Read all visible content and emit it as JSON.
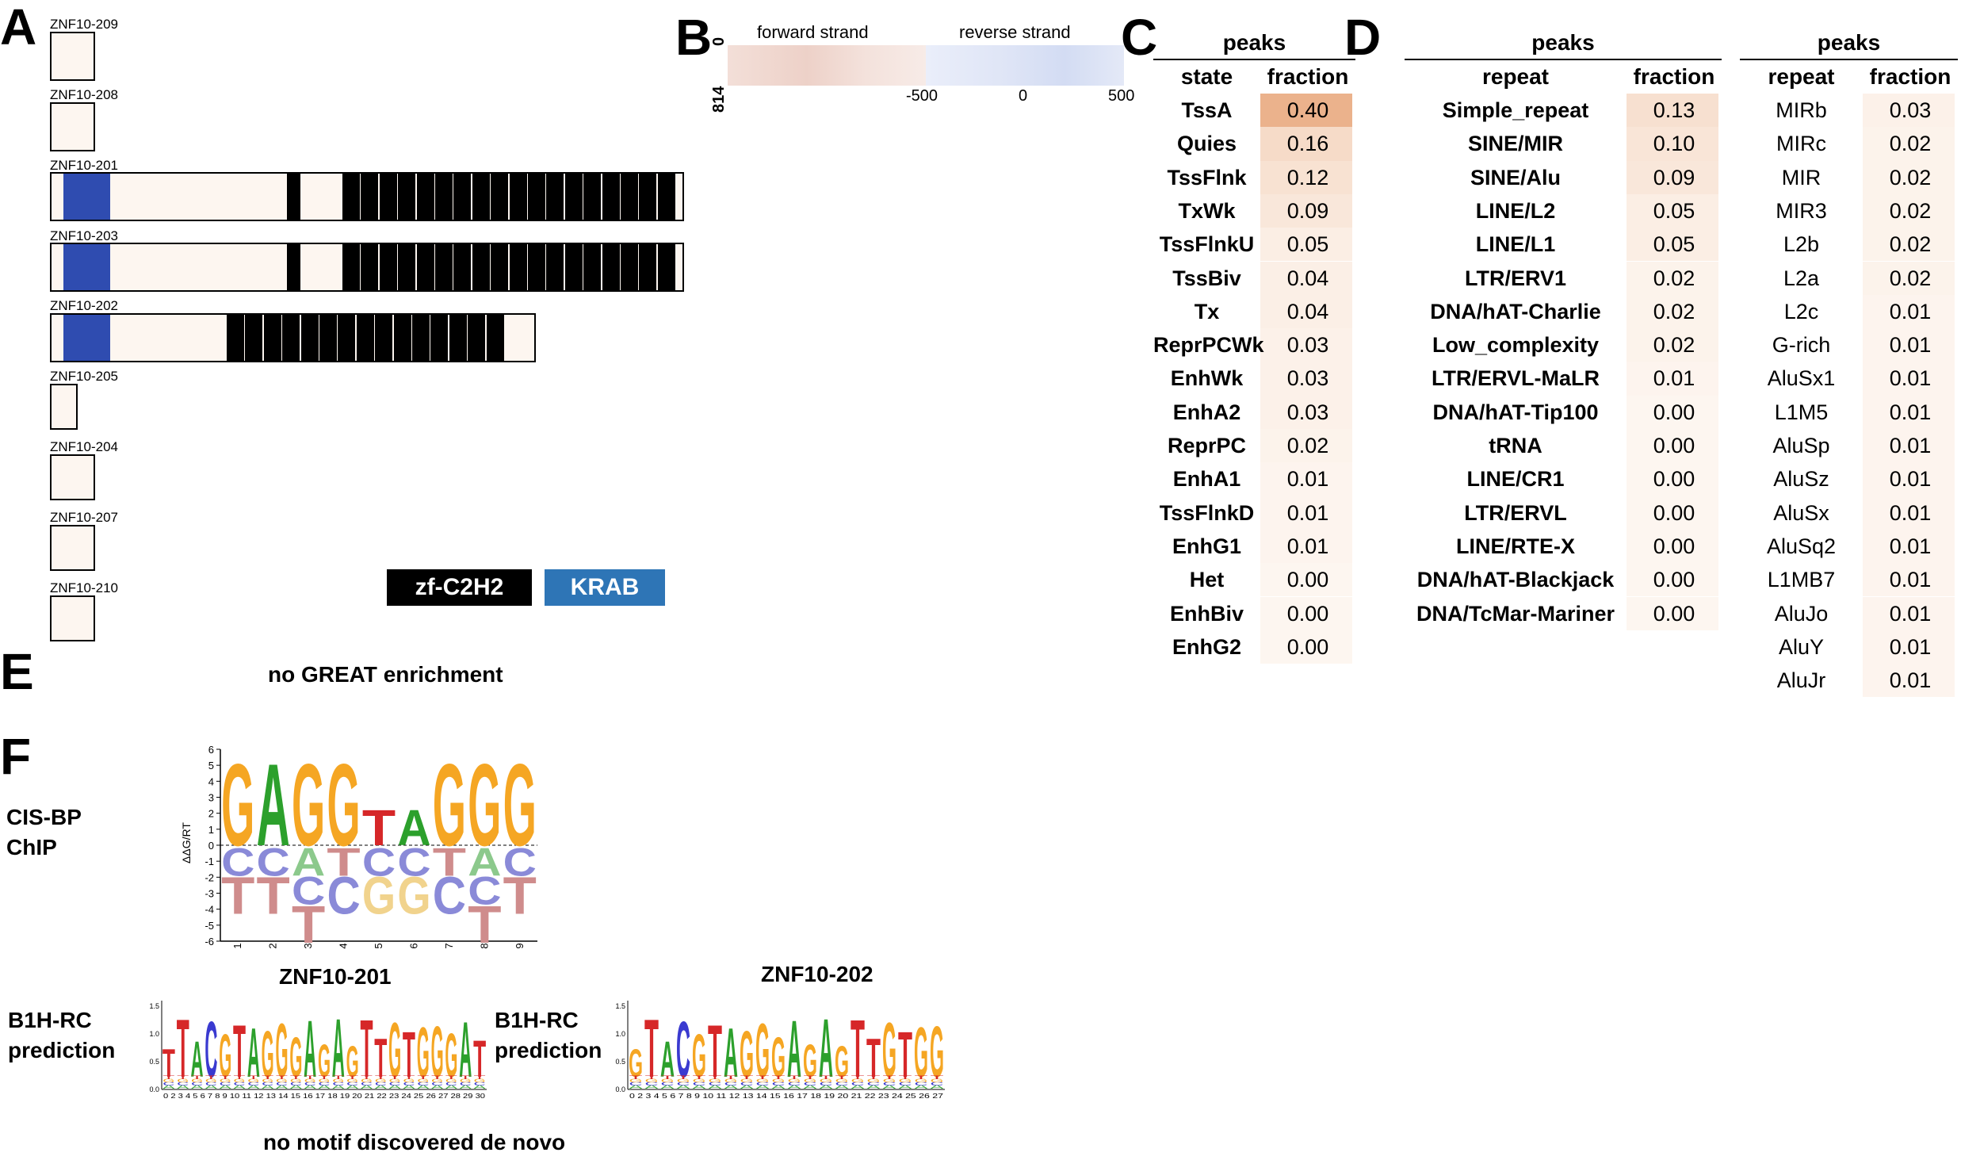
{
  "panel_letters": {
    "a": "A",
    "b": "B",
    "c": "C",
    "d": "D",
    "e": "E",
    "f": "F"
  },
  "panelA": {
    "isoforms": [
      {
        "name": "ZNF10-209"
      },
      {
        "name": "ZNF10-208"
      },
      {
        "name": "ZNF10-201"
      },
      {
        "name": "ZNF10-203"
      },
      {
        "name": "ZNF10-202"
      },
      {
        "name": "ZNF10-205"
      },
      {
        "name": "ZNF10-204"
      },
      {
        "name": "ZNF10-207"
      },
      {
        "name": "ZNF10-210"
      }
    ],
    "legend": {
      "zf": "zf-C2H2",
      "krab": "KRAB"
    },
    "colors": {
      "krab_domain": "#2f4cb0",
      "krab_legend": "#2e75b6",
      "zf": "#000000",
      "box_fill": "#fdf6f0"
    }
  },
  "panelB": {
    "forward_label": "forward strand",
    "reverse_label": "reverse strand",
    "y_top": "0",
    "y_bottom": "814",
    "ticks": [
      "-500",
      "0",
      "500"
    ]
  },
  "panelC": {
    "title": "peaks",
    "col1": "state",
    "col2": "fraction",
    "rows": [
      {
        "label": "TssA",
        "value": "0.40"
      },
      {
        "label": "Quies",
        "value": "0.16"
      },
      {
        "label": "TssFlnk",
        "value": "0.12"
      },
      {
        "label": "TxWk",
        "value": "0.09"
      },
      {
        "label": "TssFlnkU",
        "value": "0.05"
      },
      {
        "label": "TssBiv",
        "value": "0.04"
      },
      {
        "label": "Tx",
        "value": "0.04"
      },
      {
        "label": "ReprPCWk",
        "value": "0.03"
      },
      {
        "label": "EnhWk",
        "value": "0.03"
      },
      {
        "label": "EnhA2",
        "value": "0.03"
      },
      {
        "label": "ReprPC",
        "value": "0.02"
      },
      {
        "label": "EnhA1",
        "value": "0.01"
      },
      {
        "label": "TssFlnkD",
        "value": "0.01"
      },
      {
        "label": "EnhG1",
        "value": "0.01"
      },
      {
        "label": "Het",
        "value": "0.00"
      },
      {
        "label": "EnhBiv",
        "value": "0.00"
      },
      {
        "label": "EnhG2",
        "value": "0.00"
      }
    ]
  },
  "panelD": {
    "left": {
      "title": "peaks",
      "col1": "repeat",
      "col2": "fraction",
      "rows": [
        {
          "label": "Simple_repeat",
          "value": "0.13"
        },
        {
          "label": "SINE/MIR",
          "value": "0.10"
        },
        {
          "label": "SINE/Alu",
          "value": "0.09"
        },
        {
          "label": "LINE/L2",
          "value": "0.05"
        },
        {
          "label": "LINE/L1",
          "value": "0.05"
        },
        {
          "label": "LTR/ERV1",
          "value": "0.02"
        },
        {
          "label": "DNA/hAT-Charlie",
          "value": "0.02"
        },
        {
          "label": "Low_complexity",
          "value": "0.02"
        },
        {
          "label": "LTR/ERVL-MaLR",
          "value": "0.01"
        },
        {
          "label": "DNA/hAT-Tip100",
          "value": "0.00"
        },
        {
          "label": "tRNA",
          "value": "0.00"
        },
        {
          "label": "LINE/CR1",
          "value": "0.00"
        },
        {
          "label": "LTR/ERVL",
          "value": "0.00"
        },
        {
          "label": "LINE/RTE-X",
          "value": "0.00"
        },
        {
          "label": "DNA/hAT-Blackjack",
          "value": "0.00"
        },
        {
          "label": "DNA/TcMar-Mariner",
          "value": "0.00"
        }
      ]
    },
    "right": {
      "title": "peaks",
      "col1": "repeat",
      "col2": "fraction",
      "rows": [
        {
          "label": "MIRb",
          "value": "0.03"
        },
        {
          "label": "MIRc",
          "value": "0.02"
        },
        {
          "label": "MIR",
          "value": "0.02"
        },
        {
          "label": "MIR3",
          "value": "0.02"
        },
        {
          "label": "L2b",
          "value": "0.02"
        },
        {
          "label": "L2a",
          "value": "0.02"
        },
        {
          "label": "L2c",
          "value": "0.01"
        },
        {
          "label": "G-rich",
          "value": "0.01"
        },
        {
          "label": "AluSx1",
          "value": "0.01"
        },
        {
          "label": "L1M5",
          "value": "0.01"
        },
        {
          "label": "AluSp",
          "value": "0.01"
        },
        {
          "label": "AluSz",
          "value": "0.01"
        },
        {
          "label": "AluSx",
          "value": "0.01"
        },
        {
          "label": "AluSq2",
          "value": "0.01"
        },
        {
          "label": "L1MB7",
          "value": "0.01"
        },
        {
          "label": "AluJo",
          "value": "0.01"
        },
        {
          "label": "AluY",
          "value": "0.01"
        },
        {
          "label": "AluJr",
          "value": "0.01"
        }
      ]
    }
  },
  "panelE": {
    "note": "no GREAT enrichment"
  },
  "panelF": {
    "cisbp_label_1": "CIS-BP",
    "cisbp_label_2": "ChIP",
    "y_axis_label": "ΔΔG/RT",
    "y_ticks": [
      "6",
      "5",
      "4",
      "3",
      "2",
      "1",
      "0",
      "-1",
      "-2",
      "-3",
      "-4",
      "-5",
      "-6"
    ],
    "x_ticks": [
      "1",
      "2",
      "3",
      "4",
      "5",
      "6",
      "7",
      "8",
      "9"
    ],
    "top_letters": [
      "G",
      "A",
      "G",
      "G",
      "T",
      "A",
      "G",
      "G",
      "G"
    ],
    "bottom_letters": [
      [
        "C",
        "T"
      ],
      [
        "C",
        "T"
      ],
      [
        "A",
        "C",
        "T"
      ],
      [
        "T",
        "C"
      ],
      [
        "C",
        "G"
      ],
      [
        "C",
        "G"
      ],
      [
        "T",
        "C"
      ],
      [
        "A",
        "C",
        "T"
      ],
      [
        "C",
        "T"
      ]
    ],
    "b1h_label_1": "B1H-RC",
    "b1h_label_2": "prediction",
    "logo1_title": "ZNF10-201",
    "logo2_title": "ZNF10-202",
    "logo1_yticks": [
      "1.5",
      "1.0",
      "0.5",
      "0.0"
    ],
    "logo2_yticks": [
      "1.5",
      "1.0",
      "0.5",
      "0.0"
    ],
    "logo1_sequence": "TTACGTAGGGAGAGTTGTGGGAT",
    "logo2_sequence": "GTACGTAGGGAGAGTTGTGG",
    "logo1_xticks": "0 2 3 4 5 6 7 8 9 10 11 12 13 14 15 16 17 18 19 20 21 22 23 24 25 26 27 28 29 30",
    "logo2_xticks": "0 2 3 4 5 6 7 8 9 10 11 12 13 14 15 16 17 18 19 20 21 22 23 24 25 26 27",
    "note": "no motif discovered de novo",
    "letter_colors": {
      "A": "#2ca02c",
      "C": "#3a3ad0",
      "G": "#f5a623",
      "T": "#d62728"
    }
  }
}
